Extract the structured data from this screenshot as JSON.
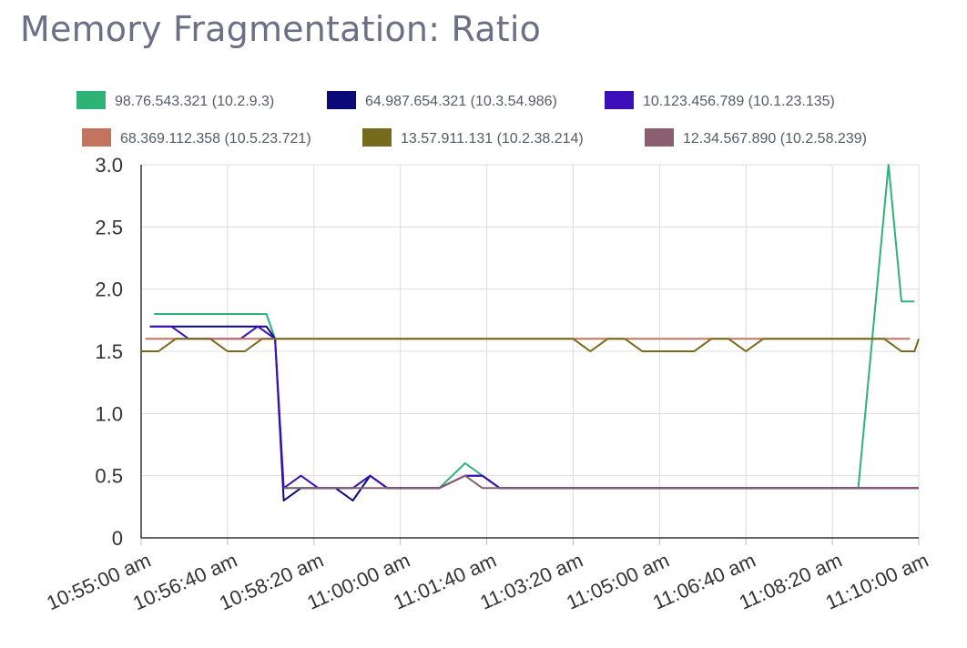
{
  "page": {
    "title": "Memory Fragmentation: Ratio"
  },
  "chart_data": {
    "type": "line",
    "title": "Memory Fragmentation: Ratio",
    "xlabel": "",
    "ylabel": "",
    "ylim": [
      0,
      3.0
    ],
    "xlim": [
      "10:55:00 am",
      "11:10:00 am"
    ],
    "y_ticks": [
      "0",
      "0.5",
      "1.0",
      "1.5",
      "2.0",
      "2.5",
      "3.0"
    ],
    "x_ticks": [
      "10:55:00 am",
      "10:56:40 am",
      "10:58:20 am",
      "11:00:00 am",
      "11:01:40 am",
      "11:03:20 am",
      "11:05:00 am",
      "11:06:40 am",
      "11:08:20 am",
      "11:10:00 am"
    ],
    "grid": true,
    "legend_position": "top",
    "series": [
      {
        "name": "98.76.543.321 (10.2.9.3)",
        "color": "#2eb276",
        "points": [
          [
            "10:55:15 am",
            1.8
          ],
          [
            "10:57:25 am",
            1.8
          ],
          [
            "10:57:35 am",
            1.6
          ],
          [
            "10:57:45 am",
            0.4
          ],
          [
            "10:58:05 am",
            0.4
          ],
          [
            "10:59:05 am",
            0.4
          ],
          [
            "10:59:25 am",
            0.5
          ],
          [
            "10:59:45 am",
            0.4
          ],
          [
            "11:00:45 am",
            0.4
          ],
          [
            "11:01:15 am",
            0.6
          ],
          [
            "11:01:35 am",
            0.5
          ],
          [
            "11:01:55 am",
            0.4
          ],
          [
            "11:08:50 am",
            0.4
          ],
          [
            "11:09:25 am",
            3.0
          ],
          [
            "11:09:40 am",
            1.9
          ],
          [
            "11:09:55 am",
            1.9
          ]
        ]
      },
      {
        "name": "64.987.654.321 (10.3.54.986)",
        "color": "#0a0a78",
        "points": [
          [
            "10:55:10 am",
            1.7
          ],
          [
            "10:57:25 am",
            1.7
          ],
          [
            "10:57:35 am",
            1.6
          ],
          [
            "10:57:45 am",
            0.3
          ],
          [
            "10:58:05 am",
            0.4
          ],
          [
            "10:58:45 am",
            0.4
          ],
          [
            "10:59:05 am",
            0.3
          ],
          [
            "10:59:25 am",
            0.5
          ],
          [
            "10:59:45 am",
            0.4
          ],
          [
            "11:00:45 am",
            0.4
          ],
          [
            "11:01:15 am",
            0.5
          ],
          [
            "11:01:35 am",
            0.5
          ],
          [
            "11:01:55 am",
            0.4
          ],
          [
            "11:10:00 am",
            0.4
          ]
        ]
      },
      {
        "name": "10.123.456.789 (10.1.23.135)",
        "color": "#3d0fb8",
        "points": [
          [
            "10:55:10 am",
            1.7
          ],
          [
            "10:55:35 am",
            1.7
          ],
          [
            "10:55:55 am",
            1.6
          ],
          [
            "10:56:55 am",
            1.6
          ],
          [
            "10:57:15 am",
            1.7
          ],
          [
            "10:57:35 am",
            1.6
          ],
          [
            "10:57:45 am",
            0.4
          ],
          [
            "10:58:05 am",
            0.5
          ],
          [
            "10:58:25 am",
            0.4
          ],
          [
            "10:59:05 am",
            0.4
          ],
          [
            "10:59:25 am",
            0.5
          ],
          [
            "10:59:45 am",
            0.4
          ],
          [
            "11:00:45 am",
            0.4
          ],
          [
            "11:01:15 am",
            0.5
          ],
          [
            "11:01:35 am",
            0.5
          ],
          [
            "11:01:55 am",
            0.4
          ],
          [
            "11:10:00 am",
            0.4
          ]
        ]
      },
      {
        "name": "68.369.112.358 (10.5.23.721)",
        "color": "#c4745e",
        "points": [
          [
            "10:55:05 am",
            1.6
          ],
          [
            "11:09:50 am",
            1.6
          ]
        ]
      },
      {
        "name": "13.57.911.131 (10.2.38.214)",
        "color": "#766b1c",
        "points": [
          [
            "10:55:00 am",
            1.5
          ],
          [
            "10:55:20 am",
            1.5
          ],
          [
            "10:55:40 am",
            1.6
          ],
          [
            "10:56:20 am",
            1.6
          ],
          [
            "10:56:40 am",
            1.5
          ],
          [
            "10:57:00 am",
            1.5
          ],
          [
            "10:57:20 am",
            1.6
          ],
          [
            "11:03:20 am",
            1.6
          ],
          [
            "11:03:40 am",
            1.5
          ],
          [
            "11:04:00 am",
            1.6
          ],
          [
            "11:04:20 am",
            1.6
          ],
          [
            "11:04:40 am",
            1.5
          ],
          [
            "11:05:40 am",
            1.5
          ],
          [
            "11:06:00 am",
            1.6
          ],
          [
            "11:06:20 am",
            1.6
          ],
          [
            "11:06:40 am",
            1.5
          ],
          [
            "11:07:00 am",
            1.6
          ],
          [
            "11:09:20 am",
            1.6
          ],
          [
            "11:09:40 am",
            1.5
          ],
          [
            "11:09:55 am",
            1.5
          ],
          [
            "11:10:00 am",
            1.6
          ]
        ]
      },
      {
        "name": "12.34.567.890 (10.2.58.239)",
        "color": "#8a6070",
        "points": [
          [
            "10:57:45 am",
            0.4
          ],
          [
            "11:00:45 am",
            0.4
          ],
          [
            "11:01:15 am",
            0.5
          ],
          [
            "11:01:35 am",
            0.4
          ],
          [
            "11:10:00 am",
            0.4
          ]
        ]
      }
    ]
  }
}
